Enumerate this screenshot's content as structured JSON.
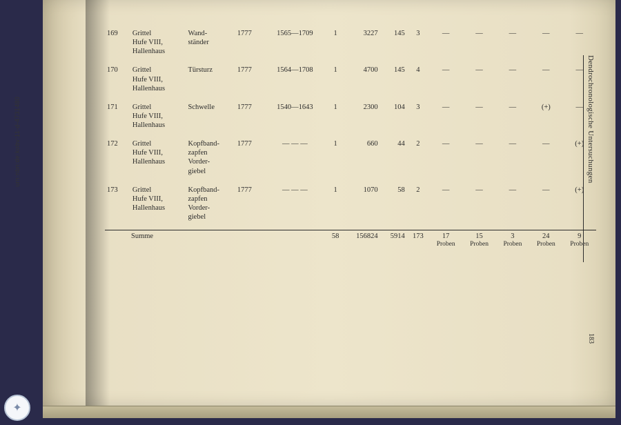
{
  "urn": "urn:nbn:de:kobv:11-d-4731480",
  "side_header": "Dendrochronologische Untersuchungen",
  "page_number": "183",
  "columns_count": 14,
  "rows": [
    {
      "id": "169",
      "loc": "Grittel\nHufe VIII,\nHallenhaus",
      "part": "Wand-\nständer",
      "year": "1777",
      "range": "1565—1709",
      "c6": "1",
      "c7": "3227",
      "c8": "145",
      "c9": "3",
      "c10": "—",
      "c11": "—",
      "c12": "—",
      "c13": "—",
      "c14": "—"
    },
    {
      "id": "170",
      "loc": "Grittel\nHufe VIII,\nHallenhaus",
      "part": "Türsturz",
      "year": "1777",
      "range": "1564—1708",
      "c6": "1",
      "c7": "4700",
      "c8": "145",
      "c9": "4",
      "c10": "—",
      "c11": "—",
      "c12": "—",
      "c13": "—",
      "c14": "—"
    },
    {
      "id": "171",
      "loc": "Grittel\nHufe VIII,\nHallenhaus",
      "part": "Schwelle",
      "year": "1777",
      "range": "1540—1643",
      "c6": "1",
      "c7": "2300",
      "c8": "104",
      "c9": "3",
      "c10": "—",
      "c11": "—",
      "c12": "—",
      "c13": "(+)",
      "c14": "—"
    },
    {
      "id": "172",
      "loc": "Grittel\nHufe VIII,\nHallenhaus",
      "part": "Kopfband-\nzapfen\nVorder-\ngiebel",
      "year": "1777",
      "range": "— — —",
      "c6": "1",
      "c7": "660",
      "c8": "44",
      "c9": "2",
      "c10": "—",
      "c11": "—",
      "c12": "—",
      "c13": "—",
      "c14": "(+)"
    },
    {
      "id": "173",
      "loc": "Grittel\nHufe VIII,\nHallenhaus",
      "part": "Kopfband-\nzapfen\nVorder-\ngiebel",
      "year": "1777",
      "range": "— — —",
      "c6": "1",
      "c7": "1070",
      "c8": "58",
      "c9": "2",
      "c10": "—",
      "c11": "—",
      "c12": "—",
      "c13": "—",
      "c14": "(+)"
    }
  ],
  "sum": {
    "label": "Summe",
    "c6": "58",
    "c7": "156824",
    "c8": "5914",
    "c9": "173",
    "c10": "17",
    "c11": "15",
    "c12": "3",
    "c13": "24",
    "c14": "9",
    "unit": "Proben"
  }
}
